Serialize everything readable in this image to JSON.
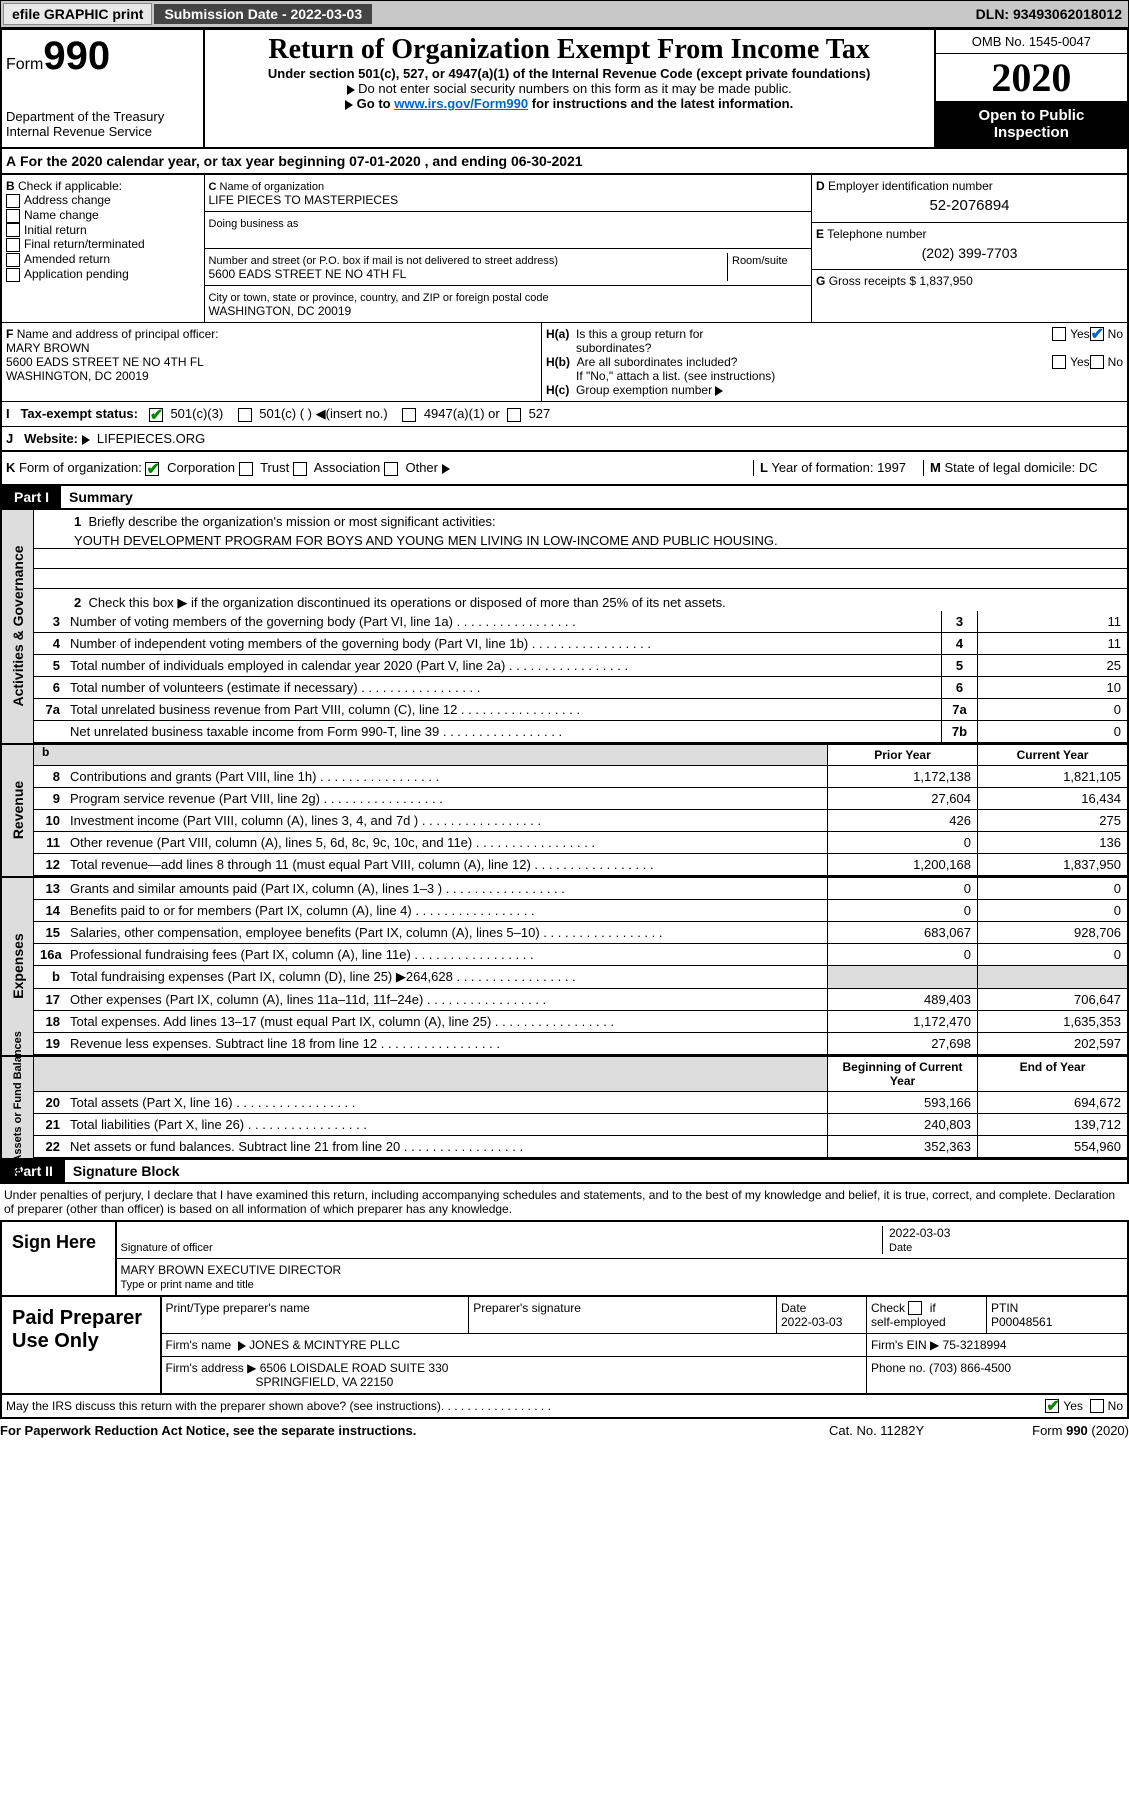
{
  "topbar": {
    "efile": "efile GRAPHIC print",
    "sublabel": "Submission Date - 2022-03-03",
    "dln": "DLN: 93493062018012"
  },
  "hdr": {
    "formword": "Form",
    "form": "990",
    "dept": "Department of the Treasury",
    "irs": "Internal Revenue Service",
    "title": "Return of Organization Exempt From Income Tax",
    "sub": "Under section 501(c), 527, or 4947(a)(1) of the Internal Revenue Code (except private foundations)",
    "l1": "Do not enter social security numbers on this form as it may be made public.",
    "l2pre": "Go to ",
    "l2link": "www.irs.gov/Form990",
    "l2post": " for instructions and the latest information.",
    "omb": "OMB No. 1545-0047",
    "year": "2020",
    "open": "Open to Public Inspection"
  },
  "A": "For the 2020 calendar year, or tax year beginning 07-01-2020    , and ending 06-30-2021",
  "B": {
    "hdr": "Check if applicable:",
    "opts": [
      "Address change",
      "Name change",
      "Initial return",
      "Final return/terminated",
      "Amended return",
      "Application pending"
    ]
  },
  "C": {
    "namelbl": "Name of organization",
    "name": "LIFE PIECES TO MASTERPIECES",
    "dba": "Doing business as",
    "addrlbl": "Number and street (or P.O. box if mail is not delivered to street address)",
    "room": "Room/suite",
    "addr": "5600 EADS STREET NE NO 4TH FL",
    "citylbl": "City or town, state or province, country, and ZIP or foreign postal code",
    "city": "WASHINGTON, DC  20019"
  },
  "D": {
    "lbl": "Employer identification number",
    "val": "52-2076894"
  },
  "E": {
    "lbl": "Telephone number",
    "val": "(202) 399-7703"
  },
  "G": "Gross receipts $ 1,837,950",
  "F": {
    "lbl": "Name and address of principal officer:",
    "name": "MARY BROWN",
    "addr": "5600 EADS STREET NE NO 4TH FL",
    "city": "WASHINGTON, DC  20019"
  },
  "H": {
    "a": "Is this a group return for",
    "a2": "subordinates?",
    "b": "Are all subordinates included?",
    "note": "If \"No,\" attach a list. (see instructions)",
    "c": "Group exemption number"
  },
  "I": {
    "lbl": "Tax-exempt status:",
    "o1": "501(c)(3)",
    "o2": "501(c) (  )",
    "ins": "(insert no.)",
    "o3": "4947(a)(1) or",
    "o4": "527"
  },
  "J": {
    "lbl": "Website:",
    "val": "LIFEPIECES.ORG"
  },
  "K": {
    "lbl": "Form of organization:",
    "opts": [
      "Corporation",
      "Trust",
      "Association",
      "Other"
    ]
  },
  "L": {
    "lbl": "Year of formation:",
    "val": "1997"
  },
  "M": {
    "lbl": "State of legal domicile:",
    "val": "DC"
  },
  "part1": {
    "bar": "Part I",
    "title": "Summary",
    "q1": "Briefly describe the organization's mission or most significant activities:",
    "mission": "YOUTH DEVELOPMENT PROGRAM FOR BOYS AND YOUNG MEN LIVING IN LOW-INCOME AND PUBLIC HOUSING.",
    "q2": "Check this box ▶     if the organization discontinued its operations or disposed of more than 25% of its net assets.",
    "lines": [
      {
        "n": "3",
        "t": "Number of voting members of the governing body (Part VI, line 1a)",
        "b": "3",
        "v": "11"
      },
      {
        "n": "4",
        "t": "Number of independent voting members of the governing body (Part VI, line 1b)",
        "b": "4",
        "v": "11"
      },
      {
        "n": "5",
        "t": "Total number of individuals employed in calendar year 2020 (Part V, line 2a)",
        "b": "5",
        "v": "25"
      },
      {
        "n": "6",
        "t": "Total number of volunteers (estimate if necessary)",
        "b": "6",
        "v": "10"
      },
      {
        "n": "7a",
        "t": "Total unrelated business revenue from Part VIII, column (C), line 12",
        "b": "7a",
        "v": "0"
      },
      {
        "n": "",
        "t": "Net unrelated business taxable income from Form 990-T, line 39",
        "b": "7b",
        "v": "0"
      }
    ],
    "side1": "Activities & Governance",
    "hdrPrior": "Prior Year",
    "hdrCurr": "Current Year",
    "rev": [
      {
        "n": "8",
        "t": "Contributions and grants (Part VIII, line 1h)",
        "p": "1,172,138",
        "c": "1,821,105"
      },
      {
        "n": "9",
        "t": "Program service revenue (Part VIII, line 2g)",
        "p": "27,604",
        "c": "16,434"
      },
      {
        "n": "10",
        "t": "Investment income (Part VIII, column (A), lines 3, 4, and 7d )",
        "p": "426",
        "c": "275"
      },
      {
        "n": "11",
        "t": "Other revenue (Part VIII, column (A), lines 5, 6d, 8c, 9c, 10c, and 11e)",
        "p": "0",
        "c": "136"
      },
      {
        "n": "12",
        "t": "Total revenue—add lines 8 through 11 (must equal Part VIII, column (A), line 12)",
        "p": "1,200,168",
        "c": "1,837,950"
      }
    ],
    "side2": "Revenue",
    "exp": [
      {
        "n": "13",
        "t": "Grants and similar amounts paid (Part IX, column (A), lines 1–3 )",
        "p": "0",
        "c": "0"
      },
      {
        "n": "14",
        "t": "Benefits paid to or for members (Part IX, column (A), line 4)",
        "p": "0",
        "c": "0"
      },
      {
        "n": "15",
        "t": "Salaries, other compensation, employee benefits (Part IX, column (A), lines 5–10)",
        "p": "683,067",
        "c": "928,706"
      },
      {
        "n": "16a",
        "t": "Professional fundraising fees (Part IX, column (A), line 11e)",
        "p": "0",
        "c": "0"
      },
      {
        "n": "b",
        "t": "Total fundraising expenses (Part IX, column (D), line 25) ▶264,628",
        "p": "",
        "c": ""
      },
      {
        "n": "17",
        "t": "Other expenses (Part IX, column (A), lines 11a–11d, 11f–24e)",
        "p": "489,403",
        "c": "706,647"
      },
      {
        "n": "18",
        "t": "Total expenses. Add lines 13–17 (must equal Part IX, column (A), line 25)",
        "p": "1,172,470",
        "c": "1,635,353"
      },
      {
        "n": "19",
        "t": "Revenue less expenses. Subtract line 18 from line 12",
        "p": "27,698",
        "c": "202,597"
      }
    ],
    "side3": "Expenses",
    "hdrBeg": "Beginning of Current Year",
    "hdrEnd": "End of Year",
    "net": [
      {
        "n": "20",
        "t": "Total assets (Part X, line 16)",
        "p": "593,166",
        "c": "694,672"
      },
      {
        "n": "21",
        "t": "Total liabilities (Part X, line 26)",
        "p": "240,803",
        "c": "139,712"
      },
      {
        "n": "22",
        "t": "Net assets or fund balances. Subtract line 21 from line 20",
        "p": "352,363",
        "c": "554,960"
      }
    ],
    "side4": "Net Assets or Fund Balances"
  },
  "part2": {
    "bar": "Part II",
    "title": "Signature Block",
    "decl": "Under penalties of perjury, I declare that I have examined this return, including accompanying schedules and statements, and to the best of my knowledge and belief, it is true, correct, and complete. Declaration of preparer (other than officer) is based on all information of which preparer has any knowledge.",
    "sign": "Sign Here",
    "sigoff": "Signature of officer",
    "date": "Date",
    "datev": "2022-03-03",
    "name": "MARY BROWN  EXECUTIVE DIRECTOR",
    "typelbl": "Type or print name and title"
  },
  "prep": {
    "lbl": "Paid Preparer Use Only",
    "h": [
      "Print/Type preparer's name",
      "Preparer's signature",
      "Date",
      "Check     if self-employed",
      "PTIN"
    ],
    "date": "2022-03-03",
    "ptin": "P00048561",
    "firm": "Firm's name",
    "firmv": "JONES & MCINTYRE PLLC",
    "ein": "Firm's EIN ▶ 75-3218994",
    "addr": "Firm's address ▶ 6506 LOISDALE ROAD SUITE 330",
    "city": "SPRINGFIELD, VA  22150",
    "phone": "Phone no. (703) 866-4500",
    "discuss": "May the IRS discuss this return with the preparer shown above? (see instructions)"
  },
  "foot": {
    "l": "For Paperwork Reduction Act Notice, see the separate instructions.",
    "c": "Cat. No. 11282Y",
    "r": "Form 990 (2020)"
  }
}
